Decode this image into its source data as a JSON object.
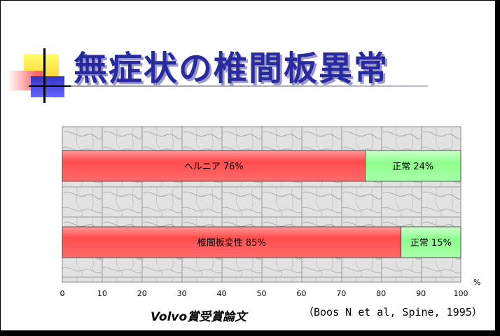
{
  "title": "無症状の椎間板異常",
  "citation": "Volvo賞受賞論文",
  "reference": "（Boos N et al, Spine, 1995）",
  "axis_unit": "%",
  "colors": {
    "abnormal": "#ff5555",
    "normal": "#99ff99",
    "title": "#2a2aa0"
  },
  "chart_data": {
    "type": "bar",
    "orientation": "horizontal",
    "stacked": true,
    "xlim": [
      0,
      100
    ],
    "xticks": [
      0,
      10,
      20,
      30,
      40,
      50,
      60,
      70,
      80,
      90,
      100
    ],
    "grid": true,
    "bars": [
      {
        "segments": [
          {
            "label": "ヘルニア 76%",
            "value": 76,
            "kind": "abnormal"
          },
          {
            "label": "正常 24%",
            "value": 24,
            "kind": "normal"
          }
        ]
      },
      {
        "segments": [
          {
            "label": "椎間板変性 85%",
            "value": 85,
            "kind": "abnormal"
          },
          {
            "label": "正常 15%",
            "value": 15,
            "kind": "normal"
          }
        ]
      }
    ]
  }
}
